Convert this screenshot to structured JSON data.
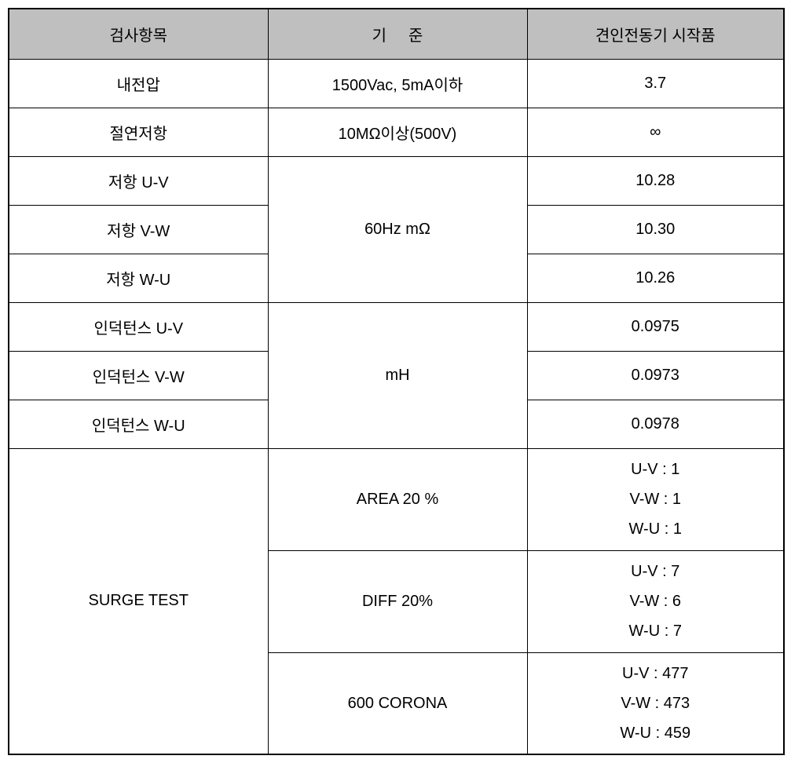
{
  "table": {
    "type": "table",
    "columns": {
      "col1": "검사항목",
      "col2": "기준",
      "col3": "견인전동기 시작품"
    },
    "rows": {
      "withstand_voltage": {
        "label": "내전압",
        "standard": "1500Vac, 5mA이하",
        "value": "3.7"
      },
      "insulation": {
        "label": "절연저항",
        "standard": "10MΩ이상(500V)",
        "value": "∞"
      },
      "resistance_group": {
        "standard": "60Hz mΩ",
        "uv": {
          "label": "저항 U-V",
          "value": "10.28"
        },
        "vw": {
          "label": "저항 V-W",
          "value": "10.30"
        },
        "wu": {
          "label": "저항 W-U",
          "value": "10.26"
        }
      },
      "inductance_group": {
        "standard": "mH",
        "uv": {
          "label": "인덕턴스 U-V",
          "value": "0.0975"
        },
        "vw": {
          "label": "인덕턴스 V-W",
          "value": "0.0973"
        },
        "wu": {
          "label": "인덕턴스 W-U",
          "value": "0.0978"
        }
      },
      "surge_test": {
        "label": "SURGE TEST",
        "area": {
          "standard": "AREA 20 %",
          "uv": "U-V : 1",
          "vw": "V-W : 1",
          "wu": "W-U : 1"
        },
        "diff": {
          "standard": "DIFF 20%",
          "uv": "U-V : 7",
          "vw": "V-W : 6",
          "wu": "W-U : 7"
        },
        "corona": {
          "standard": "600 CORONA",
          "uv": "U-V : 477",
          "vw": "V-W : 473",
          "wu": "W-U : 459"
        }
      }
    },
    "colors": {
      "header_bg": "#bfbfbf",
      "border": "#000000",
      "background": "#ffffff",
      "text": "#000000"
    },
    "font_size": 20
  }
}
